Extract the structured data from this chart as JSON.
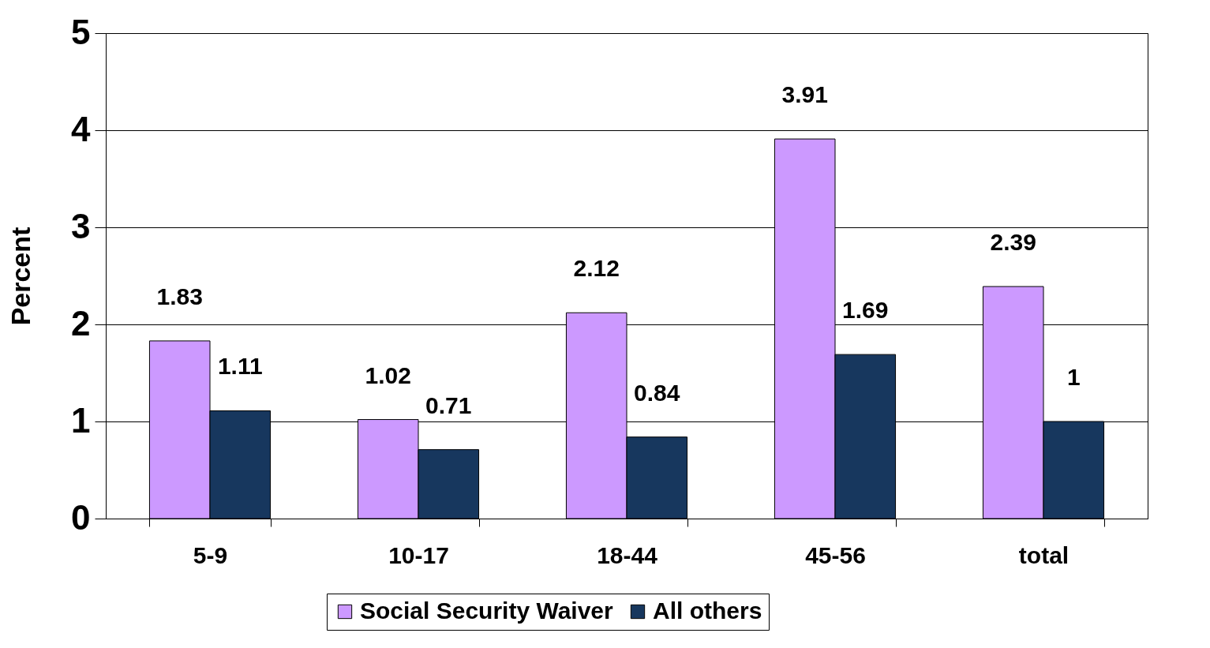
{
  "chart_data": {
    "type": "bar",
    "ylabel": "Percent",
    "categories": [
      "5-9",
      "10-17",
      "18-44",
      "45-56",
      "total"
    ],
    "series": [
      {
        "name": "Social Security Waiver",
        "color": "#cc99ff",
        "values": [
          1.83,
          1.02,
          2.12,
          3.91,
          2.39
        ]
      },
      {
        "name": "All others",
        "color": "#17375e",
        "values": [
          1.11,
          0.71,
          0.84,
          1.69,
          1
        ]
      }
    ],
    "ylim": [
      0,
      5
    ],
    "yticks": [
      0,
      1,
      2,
      3,
      4,
      5
    ],
    "grid": "y",
    "legend": "bottom",
    "data_labels": true
  }
}
